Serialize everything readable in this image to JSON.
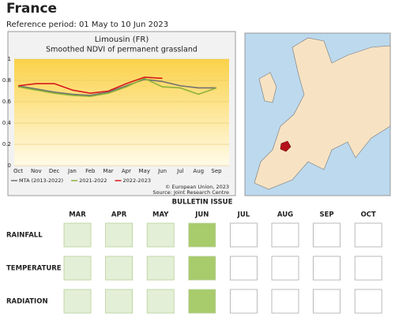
{
  "header": {
    "title": "France",
    "subtitle": "Reference period: 01 May to 10 Jun 2023"
  },
  "chart_data": {
    "type": "line",
    "title": "Limousin (FR)",
    "subtitle": "Smoothed NDVI of permanent grassland",
    "categories": [
      "Oct",
      "Nov",
      "Dec",
      "Jan",
      "Feb",
      "Mar",
      "Apr",
      "May",
      "Jun",
      "Jul",
      "Aug",
      "Sep"
    ],
    "series": [
      {
        "name": "MTA (2013-2022)",
        "color": "#707070",
        "values": [
          0.75,
          0.72,
          0.69,
          0.67,
          0.66,
          0.69,
          0.75,
          0.81,
          0.79,
          0.75,
          0.73,
          0.73
        ]
      },
      {
        "name": "2021-2022",
        "color": "#8db23a",
        "values": [
          0.74,
          0.71,
          0.68,
          0.66,
          0.65,
          0.68,
          0.74,
          0.82,
          0.74,
          0.73,
          0.67,
          0.73
        ]
      },
      {
        "name": "2022-2023",
        "color": "#d7191c",
        "values": [
          0.75,
          0.77,
          0.77,
          0.71,
          0.68,
          0.7,
          0.77,
          0.83,
          0.82,
          null,
          null,
          null
        ]
      }
    ],
    "ylim": [
      0,
      1
    ],
    "yticks": [
      0,
      0.2,
      0.4,
      0.6,
      0.8,
      1
    ],
    "grid": true,
    "credits": [
      "© European Union, 2023",
      "Source: Joint Research Centre"
    ]
  },
  "table": {
    "caption": "BULLETIN ISSUE",
    "columns": [
      "MAR",
      "APR",
      "MAY",
      "JUN",
      "JUL",
      "AUG",
      "SEP",
      "OCT"
    ],
    "rows": [
      {
        "label": "RAINFALL",
        "colors": [
          "#e3efd6",
          "#e3efd6",
          "#e3efd6",
          "#a8cb6c",
          "#ffffff",
          "#ffffff",
          "#ffffff",
          "#ffffff"
        ]
      },
      {
        "label": "TEMPERATURE",
        "colors": [
          "#e3efd6",
          "#e3efd6",
          "#e3efd6",
          "#a8cb6c",
          "#ffffff",
          "#ffffff",
          "#ffffff",
          "#ffffff"
        ]
      },
      {
        "label": "RADIATION",
        "colors": [
          "#e3efd6",
          "#e3efd6",
          "#e3efd6",
          "#a8cb6c",
          "#ffffff",
          "#ffffff",
          "#ffffff",
          "#ffffff"
        ]
      }
    ]
  }
}
